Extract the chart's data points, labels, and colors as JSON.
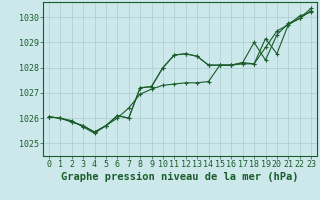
{
  "background_color": "#cce8eb",
  "grid_color": "#aacccc",
  "line_color": "#1a5c2a",
  "xlabel": "Graphe pression niveau de la mer (hPa)",
  "xlabel_fontsize": 7.5,
  "tick_fontsize": 6,
  "yticks": [
    1025,
    1026,
    1027,
    1028,
    1029,
    1030
  ],
  "xticks": [
    0,
    1,
    2,
    3,
    4,
    5,
    6,
    7,
    8,
    9,
    10,
    11,
    12,
    13,
    14,
    15,
    16,
    17,
    18,
    19,
    20,
    21,
    22,
    23
  ],
  "xlim": [
    -0.5,
    23.5
  ],
  "ylim": [
    1024.5,
    1030.6
  ],
  "series1": {
    "x": [
      0,
      1,
      2,
      3,
      4,
      5,
      6,
      7,
      8,
      9,
      10,
      11,
      12,
      13,
      14,
      15,
      16,
      17,
      18,
      19,
      20,
      21,
      22,
      23
    ],
    "y": [
      1026.05,
      1026.0,
      1025.9,
      1025.65,
      1025.4,
      1025.7,
      1026.0,
      1026.4,
      1026.95,
      1027.15,
      1027.3,
      1027.35,
      1027.4,
      1027.4,
      1027.45,
      1028.1,
      1028.1,
      1028.15,
      1028.15,
      1028.8,
      1029.45,
      1029.7,
      1030.05,
      1030.2
    ]
  },
  "series2": {
    "x": [
      0,
      1,
      2,
      3,
      4,
      5,
      6,
      7,
      8,
      9,
      10,
      11,
      12,
      13,
      14,
      15,
      16,
      17,
      18,
      19,
      20,
      21,
      22,
      23
    ],
    "y": [
      1026.05,
      1026.0,
      1025.85,
      1025.7,
      1025.45,
      1025.7,
      1026.1,
      1026.0,
      1027.2,
      1027.25,
      1028.0,
      1028.5,
      1028.55,
      1028.45,
      1028.1,
      1028.1,
      1028.1,
      1028.2,
      1028.15,
      1029.15,
      1028.55,
      1029.7,
      1029.95,
      1030.25
    ]
  },
  "series3": {
    "x": [
      0,
      1,
      2,
      3,
      4,
      5,
      6,
      7,
      8,
      9,
      10,
      11,
      12,
      13,
      14,
      15,
      16,
      17,
      18,
      19,
      20,
      21,
      22,
      23
    ],
    "y": [
      1026.05,
      1026.0,
      1025.85,
      1025.7,
      1025.45,
      1025.7,
      1026.1,
      1026.0,
      1027.2,
      1027.25,
      1028.0,
      1028.5,
      1028.55,
      1028.45,
      1028.1,
      1028.1,
      1028.1,
      1028.2,
      1029.0,
      1028.3,
      1029.3,
      1029.75,
      1029.95,
      1030.35
    ]
  }
}
